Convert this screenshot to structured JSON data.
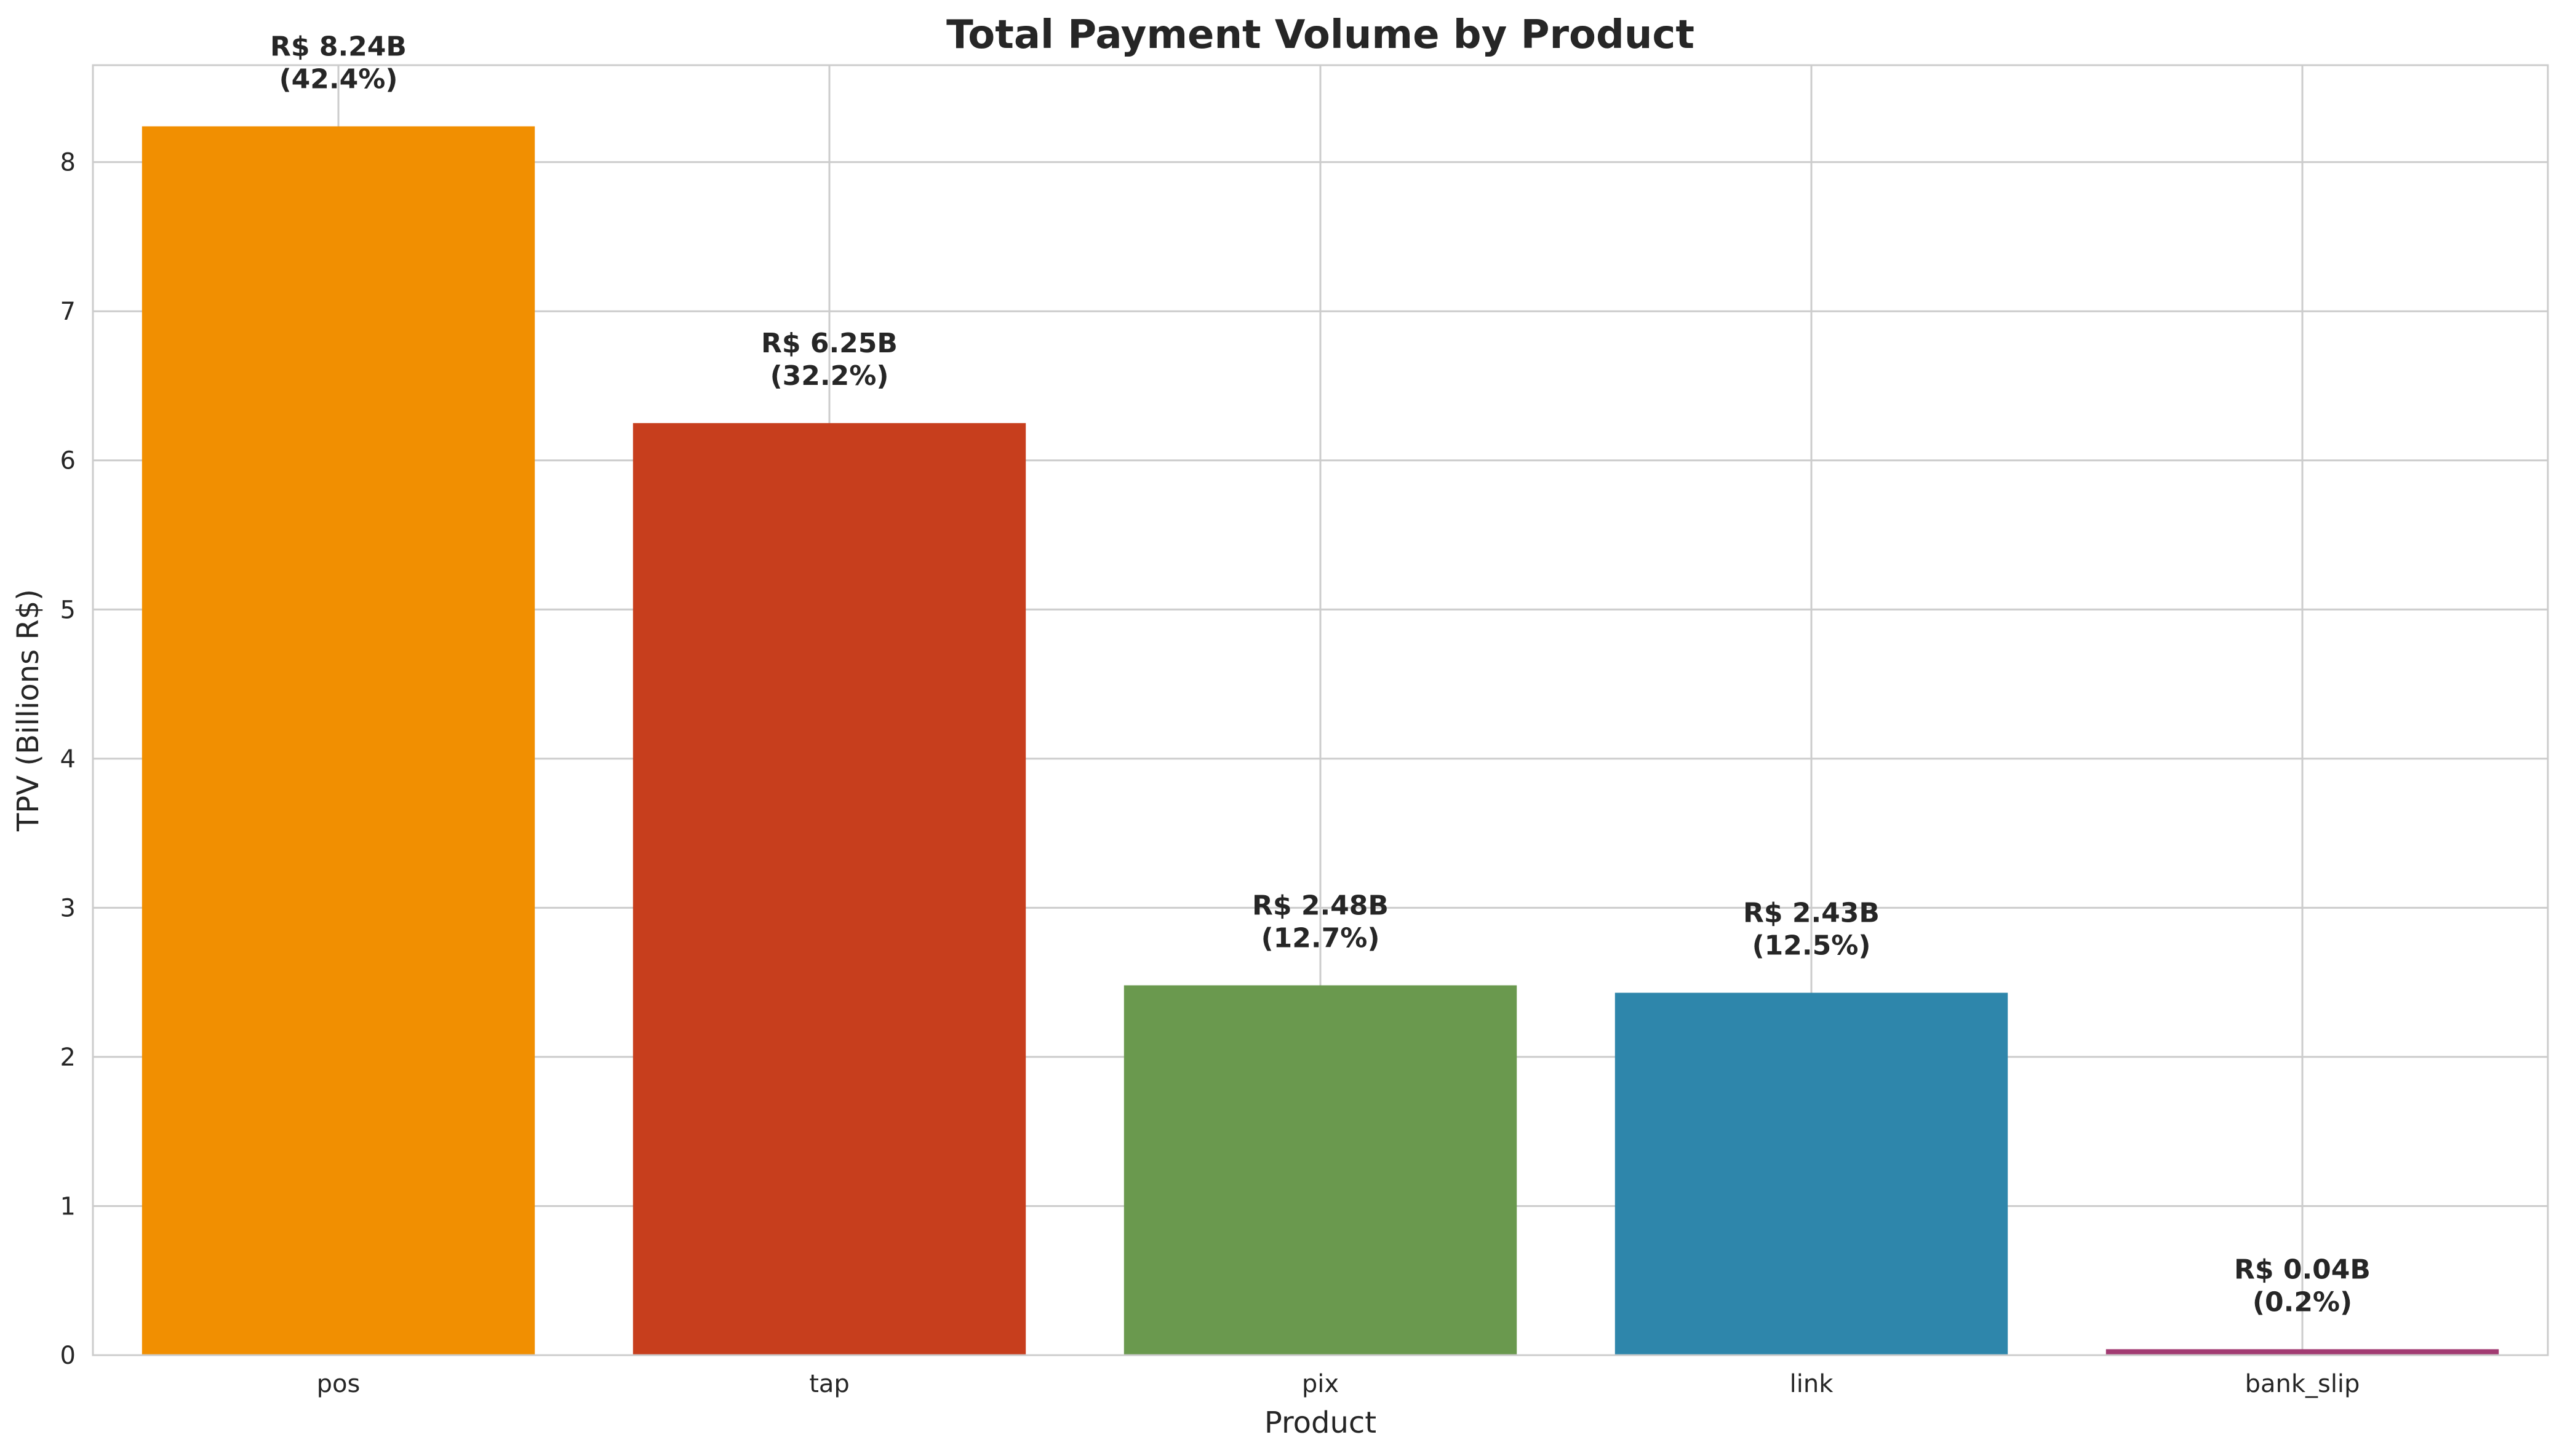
{
  "chart_data": {
    "type": "bar",
    "title": "Total Payment Volume by Product",
    "xlabel": "Product",
    "ylabel": "TPV (Billions R$)",
    "categories": [
      "pos",
      "tap",
      "pix",
      "link",
      "bank_slip"
    ],
    "values": [
      8.24,
      6.25,
      2.48,
      2.43,
      0.04
    ],
    "value_labels": [
      "R$ 8.24B",
      "R$ 6.25B",
      "R$ 2.48B",
      "R$ 2.43B",
      "R$ 0.04B"
    ],
    "percent_labels": [
      "(42.4%)",
      "(32.2%)",
      "(12.7%)",
      "(12.5%)",
      "(0.2%)"
    ],
    "colors": [
      "#F18F01",
      "#C73E1D",
      "#6A994E",
      "#2E86AB",
      "#A23B72"
    ],
    "yticks": [
      "0",
      "1",
      "2",
      "3",
      "4",
      "5",
      "6",
      "7",
      "8"
    ],
    "ylim": [
      0,
      8.65
    ],
    "grid": true,
    "legend": "none"
  }
}
